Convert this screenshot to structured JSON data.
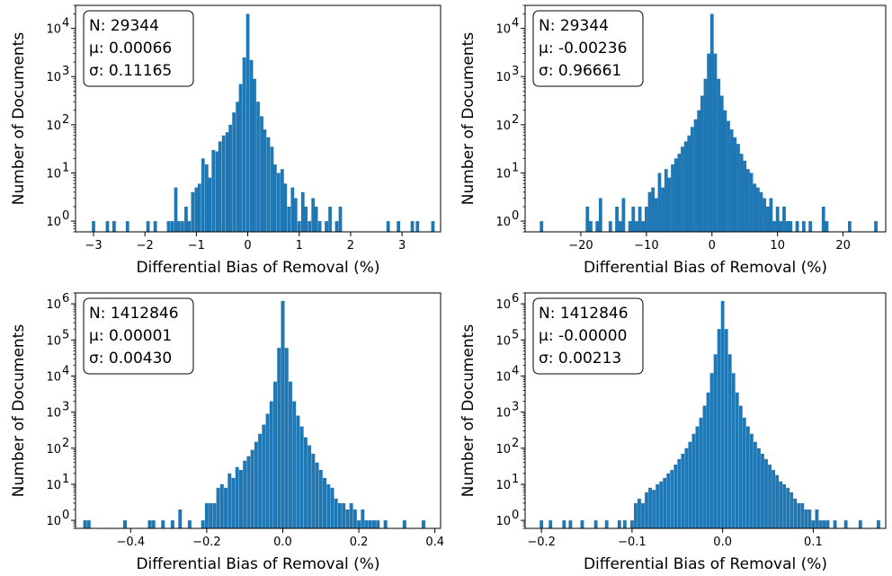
{
  "chart_data": [
    {
      "type": "bar",
      "xlabel": "Differential Bias of Removal (%)",
      "ylabel": "Number of Documents",
      "yscale": "log",
      "xlim": [
        -3.35,
        3.75
      ],
      "ylim": [
        0.6,
        30000
      ],
      "xticks": [
        -3,
        -2,
        -1,
        0,
        1,
        2,
        3
      ],
      "xtick_labels": [
        "−3",
        "−2",
        "−1",
        "0",
        "1",
        "2",
        "3"
      ],
      "yticks": [
        1,
        10,
        100,
        1000,
        10000
      ],
      "ytick_labels": [
        "10",
        "10",
        "10",
        "10",
        "10"
      ],
      "ytick_exponents": [
        "0",
        "1",
        "2",
        "3",
        "4"
      ],
      "stats": {
        "n": "N: 29344",
        "mu": "μ: 0.00066",
        "sigma": "σ: 0.11165"
      },
      "bin_width": 0.066,
      "bins": [
        [
          -3.0,
          1
        ],
        [
          -2.73,
          1
        ],
        [
          -2.6,
          1
        ],
        [
          -2.34,
          1
        ],
        [
          -1.94,
          1
        ],
        [
          -1.8,
          1
        ],
        [
          -1.54,
          1
        ],
        [
          -1.47,
          1
        ],
        [
          -1.4,
          5
        ],
        [
          -1.34,
          1
        ],
        [
          -1.27,
          1
        ],
        [
          -1.2,
          2
        ],
        [
          -1.14,
          1
        ],
        [
          -1.07,
          4
        ],
        [
          -1.0,
          5
        ],
        [
          -0.94,
          6
        ],
        [
          -0.87,
          20
        ],
        [
          -0.8,
          15
        ],
        [
          -0.74,
          8
        ],
        [
          -0.67,
          30
        ],
        [
          -0.6,
          28
        ],
        [
          -0.54,
          45
        ],
        [
          -0.47,
          60
        ],
        [
          -0.4,
          70
        ],
        [
          -0.34,
          100
        ],
        [
          -0.27,
          180
        ],
        [
          -0.2,
          300
        ],
        [
          -0.14,
          700
        ],
        [
          -0.07,
          2500
        ],
        [
          0.0,
          20000
        ],
        [
          0.07,
          2200
        ],
        [
          0.13,
          900
        ],
        [
          0.2,
          300
        ],
        [
          0.27,
          150
        ],
        [
          0.33,
          80
        ],
        [
          0.4,
          55
        ],
        [
          0.47,
          35
        ],
        [
          0.53,
          15
        ],
        [
          0.6,
          10
        ],
        [
          0.67,
          12
        ],
        [
          0.73,
          6
        ],
        [
          0.8,
          2
        ],
        [
          0.87,
          5
        ],
        [
          0.93,
          3
        ],
        [
          1.0,
          1
        ],
        [
          1.07,
          4
        ],
        [
          1.13,
          2
        ],
        [
          1.2,
          1
        ],
        [
          1.27,
          3
        ],
        [
          1.33,
          2
        ],
        [
          1.4,
          1
        ],
        [
          1.53,
          1
        ],
        [
          1.6,
          2
        ],
        [
          1.73,
          1
        ],
        [
          1.8,
          2
        ],
        [
          2.73,
          1
        ],
        [
          2.93,
          1
        ],
        [
          3.2,
          1
        ],
        [
          3.3,
          1
        ],
        [
          3.6,
          1
        ]
      ]
    },
    {
      "type": "bar",
      "xlabel": "Differential Bias of Removal (%)",
      "ylabel": "Number of Documents",
      "yscale": "log",
      "xlim": [
        -28.5,
        26.5
      ],
      "ylim": [
        0.6,
        30000
      ],
      "xticks": [
        -20,
        -10,
        0,
        10,
        20
      ],
      "xtick_labels": [
        "−20",
        "−10",
        "0",
        "10",
        "20"
      ],
      "yticks": [
        1,
        10,
        100,
        1000,
        10000
      ],
      "ytick_labels": [
        "10",
        "10",
        "10",
        "10",
        "10"
      ],
      "ytick_exponents": [
        "0",
        "1",
        "2",
        "3",
        "4"
      ],
      "stats": {
        "n": "N: 29344",
        "mu": "μ: -0.00236",
        "sigma": "σ: 0.96661"
      },
      "bin_width": 0.52,
      "bins": [
        [
          -26.0,
          1
        ],
        [
          -19.0,
          2
        ],
        [
          -18.5,
          1
        ],
        [
          -17.5,
          1
        ],
        [
          -17.0,
          3
        ],
        [
          -15.5,
          1
        ],
        [
          -14.5,
          2
        ],
        [
          -14.0,
          1
        ],
        [
          -13.5,
          3
        ],
        [
          -12.5,
          1
        ],
        [
          -12.0,
          2
        ],
        [
          -11.5,
          1
        ],
        [
          -11.0,
          2
        ],
        [
          -10.5,
          1
        ],
        [
          -10.0,
          2
        ],
        [
          -9.5,
          4
        ],
        [
          -9.0,
          5
        ],
        [
          -8.5,
          3
        ],
        [
          -8.0,
          10
        ],
        [
          -7.5,
          5
        ],
        [
          -7.0,
          12
        ],
        [
          -6.5,
          8
        ],
        [
          -6.0,
          15
        ],
        [
          -5.5,
          20
        ],
        [
          -5.0,
          25
        ],
        [
          -4.5,
          35
        ],
        [
          -4.0,
          45
        ],
        [
          -3.5,
          60
        ],
        [
          -3.0,
          90
        ],
        [
          -2.5,
          130
        ],
        [
          -2.0,
          200
        ],
        [
          -1.5,
          400
        ],
        [
          -1.0,
          900
        ],
        [
          -0.5,
          3000
        ],
        [
          0.0,
          20000
        ],
        [
          0.5,
          3000
        ],
        [
          1.0,
          900
        ],
        [
          1.5,
          400
        ],
        [
          2.0,
          200
        ],
        [
          2.5,
          120
        ],
        [
          3.0,
          80
        ],
        [
          3.5,
          55
        ],
        [
          4.0,
          40
        ],
        [
          4.5,
          25
        ],
        [
          5.0,
          18
        ],
        [
          5.5,
          12
        ],
        [
          6.0,
          10
        ],
        [
          6.5,
          6
        ],
        [
          7.0,
          5
        ],
        [
          7.5,
          4
        ],
        [
          8.0,
          3
        ],
        [
          8.5,
          2
        ],
        [
          9.0,
          3
        ],
        [
          9.5,
          1
        ],
        [
          10.0,
          2
        ],
        [
          10.5,
          1
        ],
        [
          11.0,
          2
        ],
        [
          11.5,
          1
        ],
        [
          12.0,
          1
        ],
        [
          13.0,
          1
        ],
        [
          14.0,
          1
        ],
        [
          15.0,
          1
        ],
        [
          17.0,
          2
        ],
        [
          17.5,
          1
        ],
        [
          21.0,
          1
        ],
        [
          25.0,
          1
        ]
      ]
    },
    {
      "type": "bar",
      "xlabel": "Differential Bias of Removal (%)",
      "ylabel": "Number of Documents",
      "yscale": "log",
      "xlim": [
        -0.545,
        0.415
      ],
      "ylim": [
        0.6,
        2000000
      ],
      "xticks": [
        -0.4,
        -0.2,
        0.0,
        0.2,
        0.4
      ],
      "xtick_labels": [
        "−0.4",
        "−0.2",
        "0.0",
        "0.2",
        "0.4"
      ],
      "yticks": [
        1,
        10,
        100,
        1000,
        10000,
        100000,
        1000000
      ],
      "ytick_labels": [
        "10",
        "10",
        "10",
        "10",
        "10",
        "10",
        "10"
      ],
      "ytick_exponents": [
        "0",
        "1",
        "2",
        "3",
        "4",
        "5",
        "6"
      ],
      "stats": {
        "n": "N: 1412846",
        "mu": "μ: 0.00001",
        "sigma": "σ: 0.00430"
      },
      "bin_width": 0.0094,
      "bins": [
        [
          -0.52,
          1
        ],
        [
          -0.51,
          1
        ],
        [
          -0.415,
          1
        ],
        [
          -0.35,
          1
        ],
        [
          -0.34,
          1
        ],
        [
          -0.315,
          1
        ],
        [
          -0.29,
          1
        ],
        [
          -0.27,
          2
        ],
        [
          -0.245,
          1
        ],
        [
          -0.21,
          1
        ],
        [
          -0.2,
          3
        ],
        [
          -0.19,
          3
        ],
        [
          -0.18,
          3
        ],
        [
          -0.17,
          8
        ],
        [
          -0.16,
          10
        ],
        [
          -0.15,
          8
        ],
        [
          -0.14,
          20
        ],
        [
          -0.13,
          15
        ],
        [
          -0.12,
          30
        ],
        [
          -0.11,
          25
        ],
        [
          -0.1,
          45
        ],
        [
          -0.09,
          60
        ],
        [
          -0.08,
          90
        ],
        [
          -0.07,
          150
        ],
        [
          -0.06,
          250
        ],
        [
          -0.05,
          450
        ],
        [
          -0.04,
          900
        ],
        [
          -0.03,
          2000
        ],
        [
          -0.02,
          7000
        ],
        [
          -0.01,
          60000
        ],
        [
          0.0,
          1200000
        ],
        [
          0.01,
          60000
        ],
        [
          0.02,
          7000
        ],
        [
          0.03,
          2000
        ],
        [
          0.04,
          800
        ],
        [
          0.05,
          400
        ],
        [
          0.06,
          200
        ],
        [
          0.07,
          120
        ],
        [
          0.08,
          70
        ],
        [
          0.09,
          40
        ],
        [
          0.1,
          25
        ],
        [
          0.11,
          15
        ],
        [
          0.12,
          10
        ],
        [
          0.13,
          8
        ],
        [
          0.14,
          4
        ],
        [
          0.15,
          3
        ],
        [
          0.16,
          3
        ],
        [
          0.17,
          2
        ],
        [
          0.18,
          3
        ],
        [
          0.19,
          2
        ],
        [
          0.2,
          1
        ],
        [
          0.21,
          2
        ],
        [
          0.22,
          1
        ],
        [
          0.23,
          1
        ],
        [
          0.24,
          1
        ],
        [
          0.25,
          1
        ],
        [
          0.27,
          1
        ],
        [
          0.32,
          1
        ],
        [
          0.37,
          1
        ]
      ]
    },
    {
      "type": "bar",
      "xlabel": "Differential Bias of Removal (%)",
      "ylabel": "Number of Documents",
      "yscale": "log",
      "xlim": [
        -0.218,
        0.18
      ],
      "ylim": [
        0.6,
        2000000
      ],
      "xticks": [
        -0.2,
        -0.1,
        0.0,
        0.1
      ],
      "xtick_labels": [
        "−0.2",
        "−0.1",
        "0.0",
        "0.1"
      ],
      "yticks": [
        1,
        10,
        100,
        1000,
        10000,
        100000,
        1000000
      ],
      "ytick_labels": [
        "10",
        "10",
        "10",
        "10",
        "10",
        "10",
        "10"
      ],
      "ytick_exponents": [
        "0",
        "1",
        "2",
        "3",
        "4",
        "5",
        "6"
      ],
      "stats": {
        "n": "N: 1412846",
        "mu": "μ: -0.00000",
        "sigma": "σ: 0.00213"
      },
      "bin_width": 0.0038,
      "bins": [
        [
          -0.2,
          1
        ],
        [
          -0.19,
          1
        ],
        [
          -0.175,
          1
        ],
        [
          -0.168,
          1
        ],
        [
          -0.155,
          1
        ],
        [
          -0.14,
          1
        ],
        [
          -0.128,
          1
        ],
        [
          -0.114,
          1
        ],
        [
          -0.108,
          1
        ],
        [
          -0.1,
          1
        ],
        [
          -0.096,
          3
        ],
        [
          -0.092,
          4
        ],
        [
          -0.088,
          3
        ],
        [
          -0.084,
          6
        ],
        [
          -0.08,
          8
        ],
        [
          -0.076,
          7
        ],
        [
          -0.072,
          10
        ],
        [
          -0.068,
          12
        ],
        [
          -0.064,
          15
        ],
        [
          -0.06,
          20
        ],
        [
          -0.056,
          25
        ],
        [
          -0.052,
          35
        ],
        [
          -0.048,
          50
        ],
        [
          -0.044,
          70
        ],
        [
          -0.04,
          100
        ],
        [
          -0.036,
          150
        ],
        [
          -0.032,
          250
        ],
        [
          -0.028,
          400
        ],
        [
          -0.024,
          700
        ],
        [
          -0.02,
          1500
        ],
        [
          -0.016,
          3500
        ],
        [
          -0.012,
          12000
        ],
        [
          -0.008,
          40000
        ],
        [
          -0.004,
          200000
        ],
        [
          0.0,
          1200000
        ],
        [
          0.004,
          200000
        ],
        [
          0.008,
          40000
        ],
        [
          0.012,
          12000
        ],
        [
          0.016,
          3500
        ],
        [
          0.02,
          1500
        ],
        [
          0.024,
          700
        ],
        [
          0.028,
          400
        ],
        [
          0.032,
          250
        ],
        [
          0.036,
          150
        ],
        [
          0.04,
          100
        ],
        [
          0.044,
          70
        ],
        [
          0.048,
          50
        ],
        [
          0.052,
          35
        ],
        [
          0.056,
          25
        ],
        [
          0.06,
          18
        ],
        [
          0.064,
          12
        ],
        [
          0.068,
          10
        ],
        [
          0.072,
          8
        ],
        [
          0.076,
          6
        ],
        [
          0.08,
          4
        ],
        [
          0.084,
          3
        ],
        [
          0.088,
          3
        ],
        [
          0.092,
          2
        ],
        [
          0.096,
          2
        ],
        [
          0.1,
          1
        ],
        [
          0.104,
          2
        ],
        [
          0.108,
          1
        ],
        [
          0.112,
          1
        ],
        [
          0.116,
          1
        ],
        [
          0.124,
          1
        ],
        [
          0.136,
          1
        ],
        [
          0.152,
          1
        ],
        [
          0.172,
          1
        ]
      ]
    }
  ],
  "colors": {
    "bar": "#1f77b4",
    "axis": "#000000",
    "background": "#ffffff"
  }
}
